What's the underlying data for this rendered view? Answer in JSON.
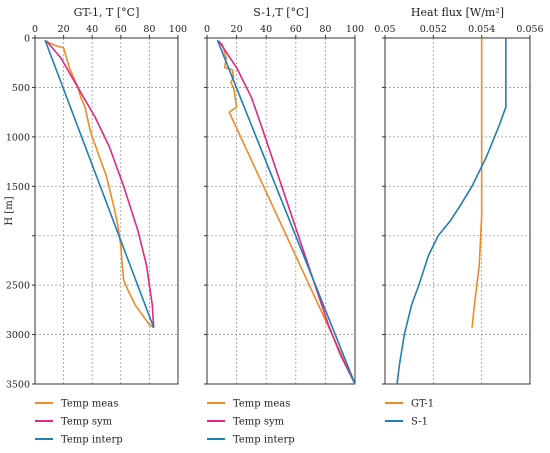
{
  "chart_data": [
    {
      "type": "line",
      "title": "GT-1, T [°C]",
      "ylabel": "H [m]",
      "xlim": [
        0,
        100
      ],
      "ylim": [
        3500,
        0
      ],
      "x_ticks": [
        "0",
        "20",
        "40",
        "60",
        "80",
        "100"
      ],
      "y_ticks": [
        "0",
        "500",
        "1000",
        "1500",
        "",
        "2500",
        "3000",
        "3500"
      ],
      "grid": true,
      "legend": "below",
      "series": [
        {
          "name": "Temp meas",
          "color": "#f08a24",
          "points": [
            [
              8,
              30
            ],
            [
              10,
              50
            ],
            [
              15,
              80
            ],
            [
              20,
              100
            ],
            [
              22,
              200
            ],
            [
              24,
              300
            ],
            [
              27,
              400
            ],
            [
              30,
              500
            ],
            [
              32,
              600
            ],
            [
              35,
              700
            ],
            [
              38,
              900
            ],
            [
              40,
              1000
            ],
            [
              45,
              1200
            ],
            [
              50,
              1400
            ],
            [
              55,
              1700
            ],
            [
              58,
              1900
            ],
            [
              60,
              2100
            ],
            [
              61,
              2300
            ],
            [
              62,
              2450
            ],
            [
              65,
              2550
            ],
            [
              70,
              2700
            ],
            [
              75,
              2800
            ],
            [
              80,
              2900
            ],
            [
              83,
              2930
            ]
          ]
        },
        {
          "name": "Temp sym",
          "color": "#e0287f",
          "points": [
            [
              8,
              30
            ],
            [
              18,
              200
            ],
            [
              30,
              500
            ],
            [
              42,
              800
            ],
            [
              52,
              1100
            ],
            [
              62,
              1500
            ],
            [
              72,
              1950
            ],
            [
              78,
              2300
            ],
            [
              82,
              2700
            ],
            [
              83,
              2930
            ]
          ]
        },
        {
          "name": "Temp interp",
          "color": "#1f7fb6",
          "points": [
            [
              7,
              20
            ],
            [
              83,
              2930
            ]
          ]
        }
      ]
    },
    {
      "type": "line",
      "title": "S-1,T [°C]",
      "xlim": [
        0,
        100
      ],
      "ylim": [
        3500,
        0
      ],
      "x_ticks": [
        "0",
        "20",
        "40",
        "60",
        "80",
        "100"
      ],
      "grid": true,
      "legend": "below",
      "series": [
        {
          "name": "Temp meas",
          "color": "#f08a24",
          "points": [
            [
              10,
              50
            ],
            [
              13,
              200
            ],
            [
              12,
              300
            ],
            [
              17,
              320
            ],
            [
              18,
              400
            ],
            [
              16,
              450
            ],
            [
              18,
              500
            ],
            [
              19,
              600
            ],
            [
              20,
              700
            ],
            [
              15,
              750
            ],
            [
              100,
              3500
            ]
          ]
        },
        {
          "name": "Temp sym",
          "color": "#e0287f",
          "points": [
            [
              8,
              30
            ],
            [
              20,
              300
            ],
            [
              30,
              600
            ],
            [
              37,
              900
            ],
            [
              46,
              1300
            ],
            [
              55,
              1700
            ],
            [
              64,
              2100
            ],
            [
              73,
              2500
            ],
            [
              82,
              2900
            ],
            [
              90,
              3200
            ],
            [
              100,
              3500
            ]
          ]
        },
        {
          "name": "Temp interp",
          "color": "#1f7fb6",
          "points": [
            [
              7,
              20
            ],
            [
              100,
              3500
            ]
          ]
        }
      ]
    },
    {
      "type": "line",
      "title": "Heat flux [W/m²]",
      "xlim": [
        0.05,
        0.056
      ],
      "ylim": [
        3500,
        0
      ],
      "x_ticks": [
        "0.05",
        "0.052",
        "0.054",
        "0.056"
      ],
      "grid": true,
      "legend": "below",
      "series": [
        {
          "name": "GT-1",
          "color": "#f08a24",
          "points": [
            [
              0.054,
              0
            ],
            [
              0.054,
              500
            ],
            [
              0.054,
              1000
            ],
            [
              0.054,
              1500
            ],
            [
              0.054,
              1800
            ],
            [
              0.0539,
              2300
            ],
            [
              0.0538,
              2500
            ],
            [
              0.0537,
              2700
            ],
            [
              0.0536,
              2930
            ]
          ]
        },
        {
          "name": "S-1",
          "color": "#1f7fb6",
          "points": [
            [
              0.055,
              0
            ],
            [
              0.055,
              700
            ],
            [
              0.0547,
              900
            ],
            [
              0.0542,
              1200
            ],
            [
              0.0536,
              1500
            ],
            [
              0.0531,
              1700
            ],
            [
              0.0527,
              1850
            ],
            [
              0.0522,
              2000
            ],
            [
              0.0518,
              2200
            ],
            [
              0.0514,
              2500
            ],
            [
              0.0511,
              2700
            ],
            [
              0.0508,
              3000
            ],
            [
              0.0506,
              3300
            ],
            [
              0.0505,
              3500
            ]
          ]
        }
      ]
    }
  ]
}
